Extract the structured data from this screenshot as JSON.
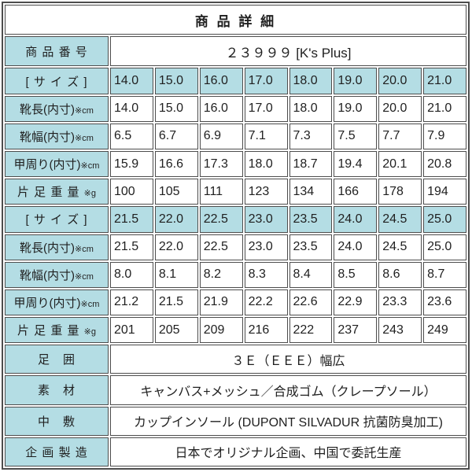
{
  "title": "商 品 詳 細",
  "product_number": {
    "label": "商 品 番 号",
    "value": "２３９９９ [K's Plus]"
  },
  "row_labels": {
    "size": "[ サ イ ズ ]",
    "length": "靴長(内寸)",
    "length_unit": "※cm",
    "width": "靴幅(内寸)",
    "width_unit": "※cm",
    "girth": "甲周り(内寸)",
    "girth_unit": "※cm",
    "weight": "片 足 重 量",
    "weight_unit": "※g"
  },
  "size_blocks": [
    {
      "sizes": [
        "14.0",
        "15.0",
        "16.0",
        "17.0",
        "18.0",
        "19.0",
        "20.0",
        "21.0"
      ],
      "length": [
        "14.0",
        "15.0",
        "16.0",
        "17.0",
        "18.0",
        "19.0",
        "20.0",
        "21.0"
      ],
      "width": [
        "6.5",
        "6.7",
        "6.9",
        "7.1",
        "7.3",
        "7.5",
        "7.7",
        "7.9"
      ],
      "girth": [
        "15.9",
        "16.6",
        "17.3",
        "18.0",
        "18.7",
        "19.4",
        "20.1",
        "20.8"
      ],
      "weight": [
        "100",
        "105",
        "111",
        "123",
        "134",
        "166",
        "178",
        "194"
      ]
    },
    {
      "sizes": [
        "21.5",
        "22.0",
        "22.5",
        "23.0",
        "23.5",
        "24.0",
        "24.5",
        "25.0"
      ],
      "length": [
        "21.5",
        "22.0",
        "22.5",
        "23.0",
        "23.5",
        "24.0",
        "24.5",
        "25.0"
      ],
      "width": [
        "8.0",
        "8.1",
        "8.2",
        "8.3",
        "8.4",
        "8.5",
        "8.6",
        "8.7"
      ],
      "girth": [
        "21.2",
        "21.5",
        "21.9",
        "22.2",
        "22.6",
        "22.9",
        "23.3",
        "23.6"
      ],
      "weight": [
        "201",
        "205",
        "209",
        "216",
        "222",
        "237",
        "243",
        "249"
      ]
    }
  ],
  "info_rows": [
    {
      "label": "足　囲",
      "value": "３Ｅ（ＥＥＥ）幅広"
    },
    {
      "label": "素　材",
      "value": "キャンバス+メッシュ／合成ゴム（クレープソール）"
    },
    {
      "label": "中　敷",
      "value": "カップインソール (DUPONT SILVADUR 抗菌防臭加工)"
    },
    {
      "label": "企 画 製 造",
      "value": "日本でオリジナル企画、中国で委託生産"
    }
  ],
  "colors": {
    "label_bg": "#b4dde4",
    "border": "#4d4d4d",
    "text": "#1f1f1f",
    "cell_bg": "#ffffff"
  }
}
